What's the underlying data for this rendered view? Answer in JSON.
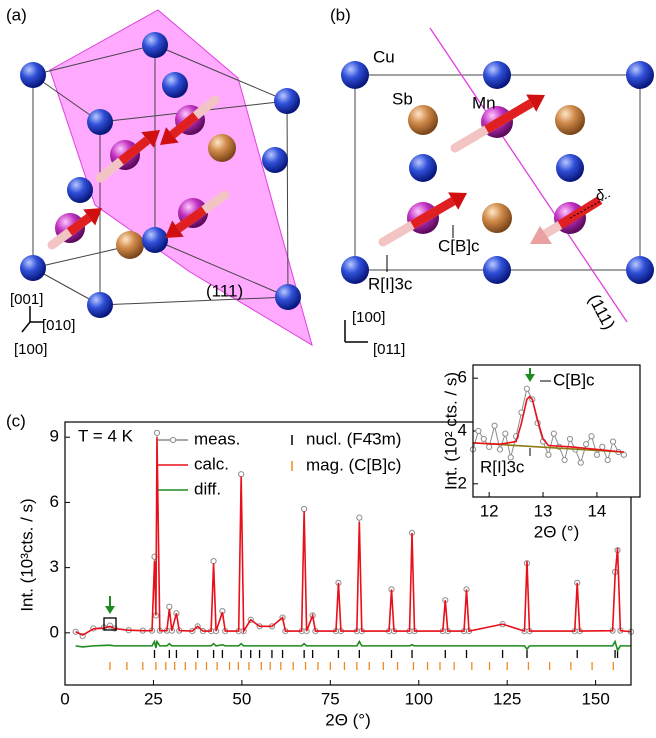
{
  "panel_a": {
    "label": "(a)",
    "axis_z": "[001]",
    "axis_y": "[010]",
    "axis_x": "[100]",
    "plane": "(111)"
  },
  "panel_b": {
    "label": "(b)",
    "cu": "Cu",
    "sb": "Sb",
    "mn": "Mn",
    "mag_cbc": "C[B]c",
    "mag_ri3c": "R[I]3c",
    "delta": "δ",
    "plane": "(111)",
    "axis_up": "[100]",
    "axis_right": "[011]"
  },
  "panel_c": {
    "label": "(c)"
  },
  "chart_data": [
    {
      "type": "line",
      "xlabel": "2Θ (°)",
      "ylabel": "Int. (10³cts. / s)",
      "annotation": "T = 4 K",
      "xlim": [
        0,
        160
      ],
      "ylim": [
        -2.4,
        9.7
      ],
      "xticks": [
        0,
        25,
        50,
        75,
        100,
        125,
        150
      ],
      "yticks": [
        0,
        3,
        6,
        9
      ],
      "x": [
        3,
        5,
        8,
        11,
        12.7,
        14,
        18,
        22,
        24.6,
        25.3,
        25.7,
        26.0,
        26.8,
        28.8,
        29.5,
        30.2,
        31.5,
        32.3,
        36,
        37.5,
        39,
        41.3,
        42.0,
        42.7,
        44.5,
        45.3,
        49.1,
        49.8,
        50.5,
        52.5,
        55,
        58.5,
        61.5,
        62.3,
        66.9,
        67.6,
        68.3,
        70,
        70.8,
        76.6,
        77.3,
        78,
        82.5,
        83.2,
        83.9,
        91.6,
        92.3,
        93,
        97.4,
        98.1,
        98.8,
        106.8,
        107.5,
        108.2,
        112.8,
        113.5,
        114.2,
        123.7,
        129.9,
        130.6,
        131.3,
        144.1,
        144.8,
        145.5,
        154.8,
        155.5,
        156.2,
        157.0,
        160
      ],
      "series": [
        {
          "name": "meas.",
          "color": "#8c8c8c",
          "marker": "circle",
          "values": [
            0.05,
            -0.15,
            0.2,
            0.25,
            0.33,
            0.2,
            0.12,
            0.1,
            0.1,
            3.5,
            0.8,
            9.2,
            0.1,
            0.1,
            1.2,
            0.1,
            0.9,
            0.1,
            0.08,
            0.3,
            0.08,
            0.08,
            3.3,
            0.08,
            1.0,
            0.08,
            0.08,
            7.3,
            0.08,
            0.6,
            0.3,
            0.3,
            0.7,
            0.08,
            0.08,
            5.7,
            0.08,
            0.8,
            0.08,
            0.08,
            2.3,
            0.08,
            0.08,
            5.3,
            0.08,
            0.08,
            2.0,
            0.08,
            0.08,
            4.6,
            0.08,
            0.08,
            1.5,
            0.08,
            0.08,
            2.0,
            0.08,
            0.4,
            0.08,
            3.2,
            0.08,
            0.08,
            2.3,
            0.08,
            0.1,
            2.8,
            3.8,
            0.1,
            0.05
          ]
        },
        {
          "name": "calc.",
          "color": "#e8101a",
          "values": [
            0.05,
            -0.1,
            0.18,
            0.22,
            0.3,
            0.2,
            0.12,
            0.1,
            0.1,
            3.3,
            0.8,
            9.0,
            0.1,
            0.1,
            1.1,
            0.1,
            0.9,
            0.1,
            0.08,
            0.3,
            0.08,
            0.08,
            3.2,
            0.08,
            0.95,
            0.08,
            0.08,
            7.2,
            0.08,
            0.6,
            0.3,
            0.3,
            0.7,
            0.08,
            0.08,
            5.6,
            0.08,
            0.8,
            0.08,
            0.08,
            2.3,
            0.08,
            0.08,
            5.1,
            0.08,
            0.08,
            2.0,
            0.08,
            0.08,
            4.6,
            0.08,
            0.08,
            1.5,
            0.08,
            0.08,
            2.0,
            0.08,
            0.4,
            0.08,
            3.3,
            0.08,
            0.08,
            2.3,
            0.08,
            0.1,
            2.6,
            3.9,
            0.1,
            0.05
          ]
        },
        {
          "name": "diff.",
          "color": "#1f8a1f",
          "values": [
            -0.6,
            -0.65,
            -0.6,
            -0.58,
            -0.57,
            -0.6,
            -0.6,
            -0.6,
            -0.6,
            -0.4,
            -0.7,
            -0.4,
            -0.6,
            -0.6,
            -0.5,
            -0.6,
            -0.6,
            -0.6,
            -0.6,
            -0.6,
            -0.6,
            -0.6,
            -0.5,
            -0.6,
            -0.55,
            -0.6,
            -0.6,
            -0.5,
            -0.6,
            -0.6,
            -0.6,
            -0.6,
            -0.6,
            -0.6,
            -0.6,
            -0.5,
            -0.6,
            -0.6,
            -0.6,
            -0.6,
            -0.6,
            -0.6,
            -0.6,
            -0.4,
            -0.6,
            -0.6,
            -0.6,
            -0.6,
            -0.6,
            -0.55,
            -0.6,
            -0.6,
            -0.6,
            -0.6,
            -0.6,
            -0.6,
            -0.6,
            -0.6,
            -0.6,
            -0.75,
            -0.6,
            -0.6,
            -0.6,
            -0.6,
            -0.6,
            -0.4,
            -0.8,
            -0.6,
            -0.6
          ]
        }
      ],
      "reflections": [
        {
          "name": "nucl. (F4̄3m)",
          "color": "#000000",
          "positions": [
            25.3,
            29.5,
            31.5,
            37.5,
            42.0,
            44.5,
            49.8,
            52.5,
            55.0,
            58.5,
            61.5,
            67.6,
            70.0,
            77.3,
            83.2,
            92.3,
            98.1,
            107.5,
            113.5,
            123.7,
            130.6,
            144.8,
            155.5,
            156.2
          ]
        },
        {
          "name": "mag. (C[B]c)",
          "color": "#f08a1c",
          "positions": [
            12.7,
            17.5,
            22.0,
            25.7,
            28.5,
            31.0,
            34.0,
            37.0,
            40.0,
            43.0,
            46.5,
            49.0,
            52.0,
            55.5,
            58.0,
            61.0,
            64.5,
            68.0,
            71.5,
            75.0,
            79.0,
            82.5,
            86.0,
            90.0,
            94.0,
            98.5,
            102.5,
            106.0,
            110.0,
            115.0,
            120.0,
            125.0,
            131.0,
            137.0,
            143.0,
            149.0,
            155.0
          ]
        }
      ]
    },
    {
      "type": "line",
      "xlabel": "2Θ (°)",
      "ylabel": "Int. (10² cts. / s)",
      "annotations": [
        "C[B]c",
        "R[I]3c"
      ],
      "xlim": [
        11.7,
        14.8
      ],
      "ylim": [
        1.5,
        6.5
      ],
      "xticks": [
        12,
        13,
        14
      ],
      "yticks": [
        2,
        4,
        6
      ],
      "series": [
        {
          "color": "#8c8c8c",
          "marker": "circle",
          "x": [
            11.7,
            11.8,
            11.9,
            12.0,
            12.1,
            12.2,
            12.3,
            12.4,
            12.5,
            12.6,
            12.7,
            12.8,
            12.9,
            13.0,
            13.1,
            13.2,
            13.3,
            13.4,
            13.5,
            13.6,
            13.7,
            13.8,
            13.9,
            14.0,
            14.1,
            14.2,
            14.3,
            14.4,
            14.5
          ],
          "values": [
            3.3,
            4.0,
            3.7,
            3.4,
            4.2,
            3.3,
            3.9,
            3.0,
            3.8,
            4.7,
            5.6,
            5.2,
            4.3,
            3.6,
            3.1,
            3.9,
            3.4,
            2.9,
            3.7,
            3.3,
            2.8,
            3.5,
            3.8,
            3.1,
            3.4,
            2.9,
            3.6,
            3.2,
            3.1
          ]
        },
        {
          "color": "#8a7a10",
          "x": [
            11.7,
            14.5
          ],
          "values": [
            3.55,
            3.2
          ]
        },
        {
          "color": "#e8101a",
          "x": [
            11.7,
            12.2,
            12.5,
            12.6,
            12.7,
            12.75,
            12.8,
            12.9,
            13.0,
            13.1,
            13.5,
            14.0,
            14.5
          ],
          "values": [
            3.55,
            3.5,
            3.6,
            4.3,
            5.2,
            5.3,
            5.2,
            4.4,
            3.7,
            3.45,
            3.4,
            3.3,
            3.2
          ]
        }
      ]
    }
  ]
}
